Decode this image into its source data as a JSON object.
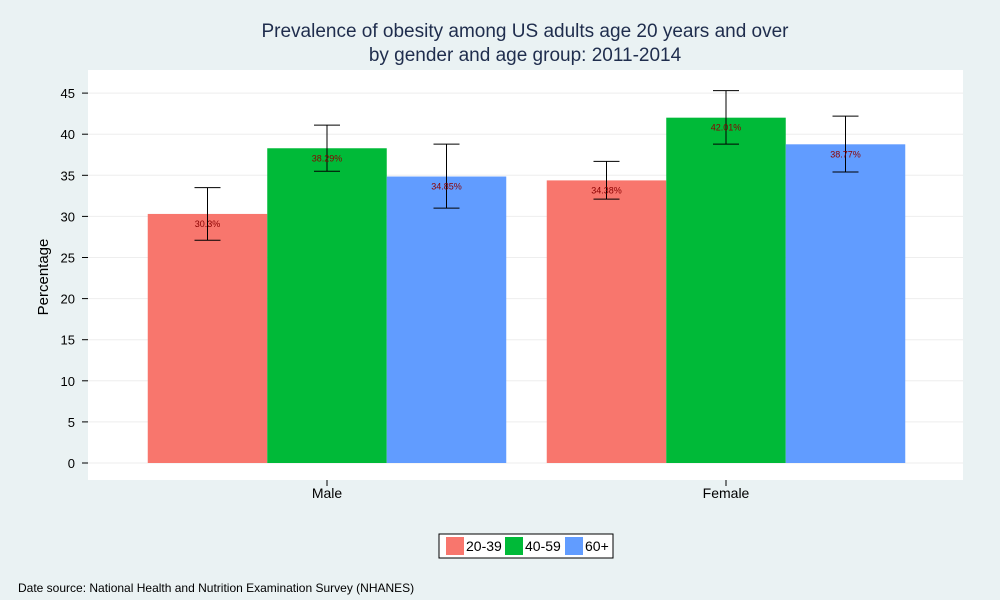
{
  "chart_data": {
    "type": "bar",
    "title_line1": "Prevalence of obesity among US adults age 20 years and over",
    "title_line2": "by gender and age group: 2011-2014",
    "xlabel": "",
    "ylabel": "Percentage",
    "ylim": [
      -2,
      47
    ],
    "yticks": [
      0,
      5,
      10,
      15,
      20,
      25,
      30,
      35,
      40,
      45
    ],
    "grid": true,
    "legend_position": "bottom",
    "categories": [
      "Male",
      "Female"
    ],
    "series": [
      {
        "name": "20-39",
        "color": "#f8766d",
        "values": [
          30.3,
          34.38
        ],
        "labels": [
          "30.3%",
          "34.38%"
        ],
        "err_low": [
          27.1,
          32.1
        ],
        "err_high": [
          33.5,
          36.7
        ]
      },
      {
        "name": "40-59",
        "color": "#00ba38",
        "values": [
          38.29,
          42.01
        ],
        "labels": [
          "38.29%",
          "42.01%"
        ],
        "err_low": [
          35.5,
          38.8
        ],
        "err_high": [
          41.1,
          45.3
        ]
      },
      {
        "name": "60+",
        "color": "#619cff",
        "values": [
          34.85,
          38.77
        ],
        "labels": [
          "34.85%",
          "38.77%"
        ],
        "err_low": [
          31.0,
          35.4
        ],
        "err_high": [
          38.8,
          42.2
        ]
      }
    ],
    "source_note": "Date source: National Health and Nutrition Examination Survey (NHANES)"
  }
}
